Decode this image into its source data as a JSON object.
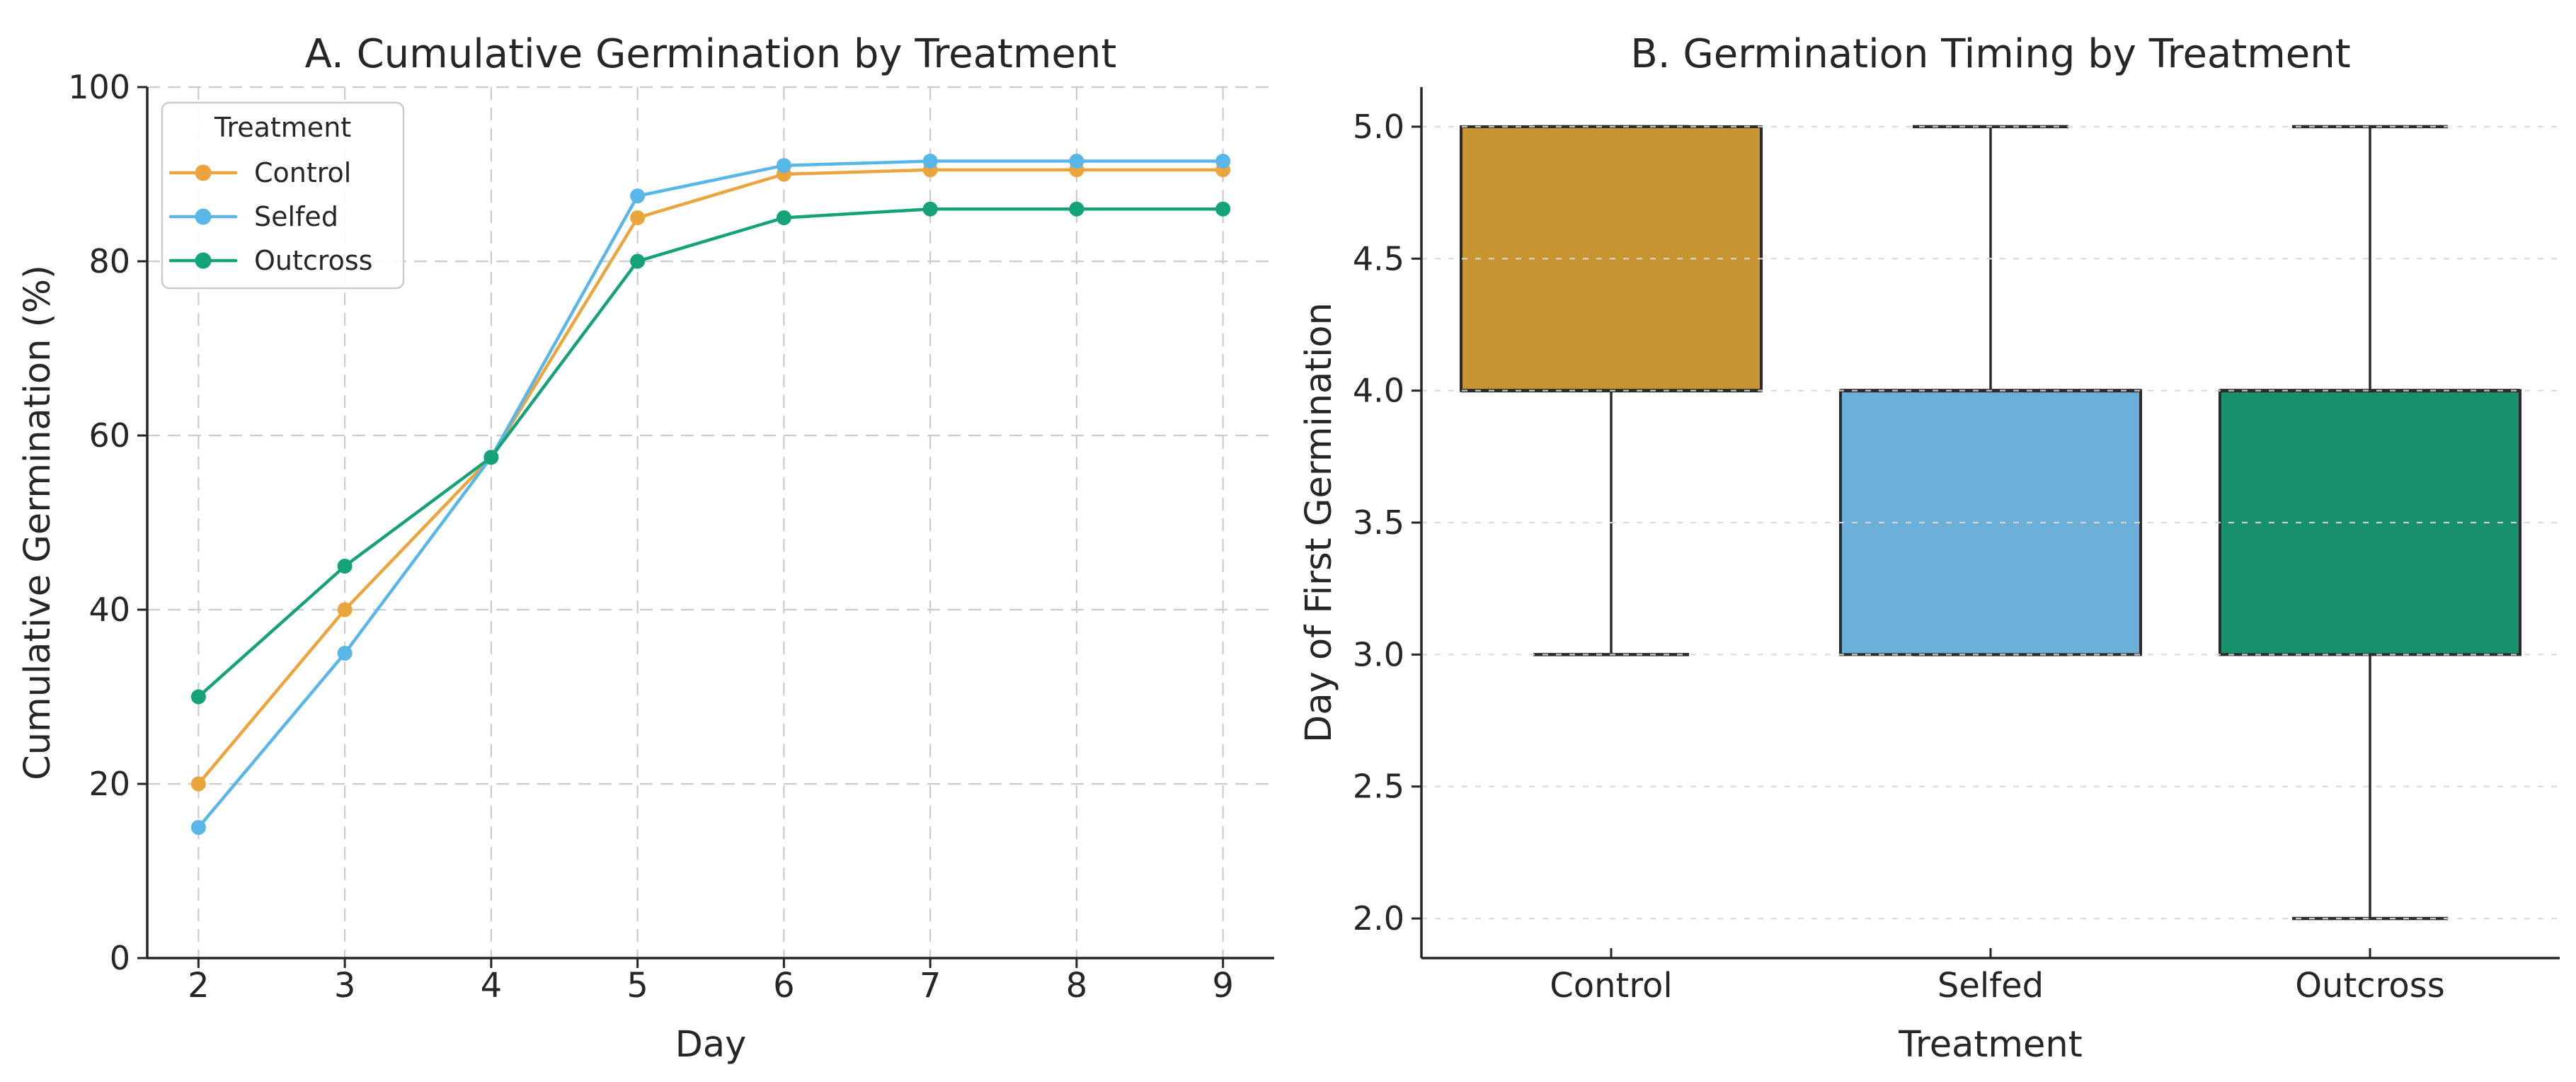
{
  "figure": {
    "background": "#ffffff",
    "text_color": "#262626",
    "spine_color": "#262626",
    "grid_color_a": "#cccccc",
    "grid_color_b": "#d8d8d8",
    "box_edge_color": "#2b2b2b"
  },
  "chart_data": [
    {
      "type": "line",
      "panel": "A",
      "title": "A. Cumulative Germination by Treatment",
      "xlabel": "Day",
      "ylabel": "Cumulative Germination (%)",
      "x": [
        2,
        3,
        4,
        5,
        6,
        7,
        8,
        9
      ],
      "xticklabels": [
        "2",
        "3",
        "4",
        "5",
        "6",
        "7",
        "8",
        "9"
      ],
      "xlim": [
        1.65,
        9.35
      ],
      "ylim": [
        0,
        100
      ],
      "yticks": [
        0,
        20,
        40,
        60,
        80,
        100
      ],
      "grid": true,
      "legend": {
        "title": "Treatment",
        "position": "upper left",
        "entries": [
          "Control",
          "Selfed",
          "Outcross"
        ]
      },
      "series": [
        {
          "name": "Control",
          "color": "#ECA43C",
          "values": [
            20,
            40,
            57.5,
            85,
            90,
            90.5,
            90.5,
            90.5
          ]
        },
        {
          "name": "Selfed",
          "color": "#58B6E9",
          "values": [
            15,
            35,
            57.5,
            87.5,
            91,
            91.5,
            91.5,
            91.5
          ]
        },
        {
          "name": "Outcross",
          "color": "#14A278",
          "values": [
            30,
            45,
            57.5,
            80,
            85,
            86,
            86,
            86
          ]
        }
      ]
    },
    {
      "type": "box",
      "panel": "B",
      "title": "B. Germination Timing by Treatment",
      "xlabel": "Treatment",
      "ylabel": "Day of First Germination",
      "categories": [
        "Control",
        "Selfed",
        "Outcross"
      ],
      "ylim": [
        1.85,
        5.15
      ],
      "yticks": [
        5.0,
        4.5,
        4.0,
        3.5,
        3.0,
        2.5,
        2.0
      ],
      "yticklabels": [
        "5.0",
        "4.5",
        "4.0",
        "3.5",
        "3.0",
        "2.5",
        "2.0"
      ],
      "grid": "horizontal",
      "boxes": [
        {
          "category": "Control",
          "fill": "#C79432",
          "q1": 4.0,
          "median": 4.0,
          "q3": 5.0,
          "whisker_low": 3.0,
          "whisker_high": 5.0
        },
        {
          "category": "Selfed",
          "fill": "#6CAFD8",
          "q1": 3.0,
          "median": 4.0,
          "q3": 4.0,
          "whisker_low": 3.0,
          "whisker_high": 5.0
        },
        {
          "category": "Outcross",
          "fill": "#17906B",
          "q1": 3.0,
          "median": 4.0,
          "q3": 4.0,
          "whisker_low": 2.0,
          "whisker_high": 5.0
        }
      ]
    }
  ]
}
